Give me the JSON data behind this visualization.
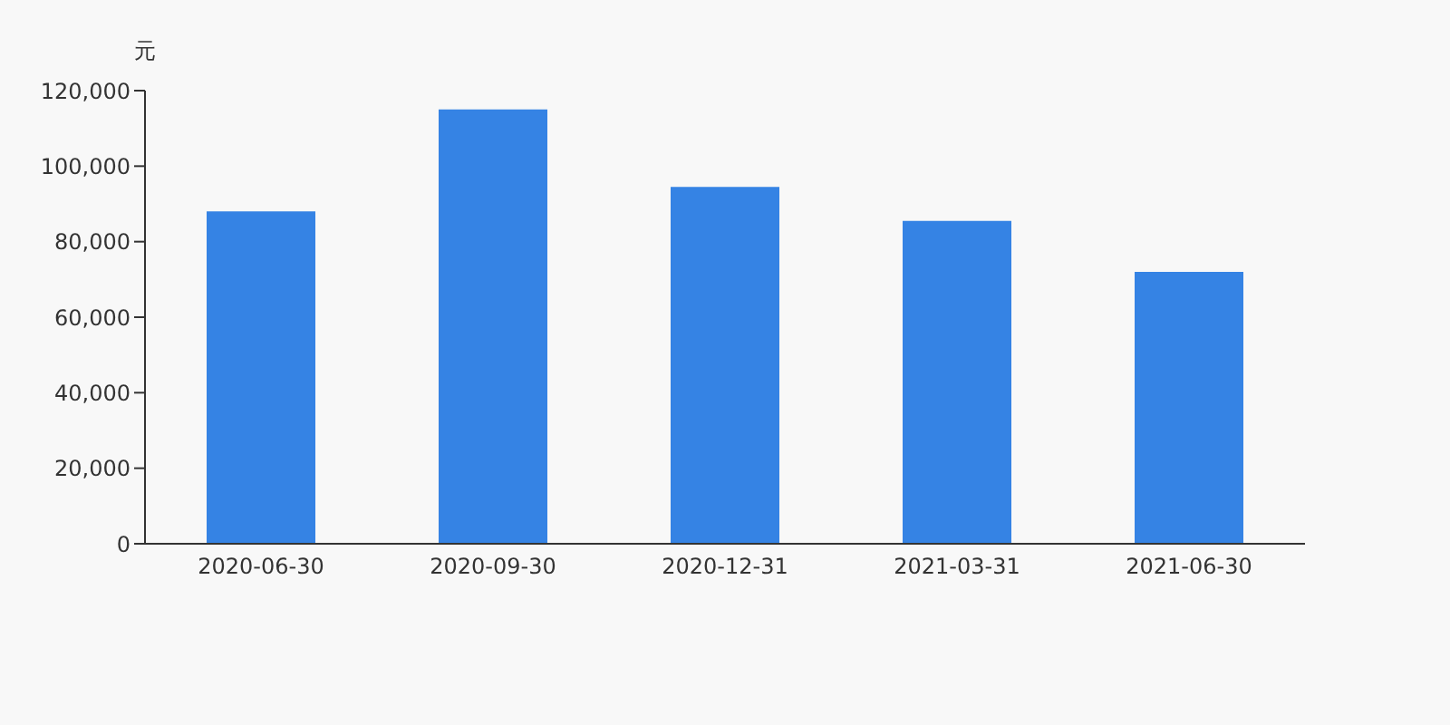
{
  "chart_data": {
    "type": "bar",
    "ylabel": "元",
    "categories": [
      "2020-06-30",
      "2020-09-30",
      "2020-12-31",
      "2021-03-31",
      "2021-06-30"
    ],
    "values": [
      88000,
      115000,
      94500,
      85500,
      72000
    ],
    "color": "#3583e4",
    "ylim": [
      0,
      120000
    ],
    "yticks": [
      0,
      {
        "value": 20000,
        "label": "20,000"
      },
      {
        "value": 40000,
        "label": "40,000"
      },
      {
        "value": 60000,
        "label": "60,000"
      },
      {
        "value": 80000,
        "label": "80,000"
      },
      {
        "value": 100000,
        "label": "100,000"
      },
      {
        "value": 120000,
        "label": "120,000"
      }
    ]
  }
}
